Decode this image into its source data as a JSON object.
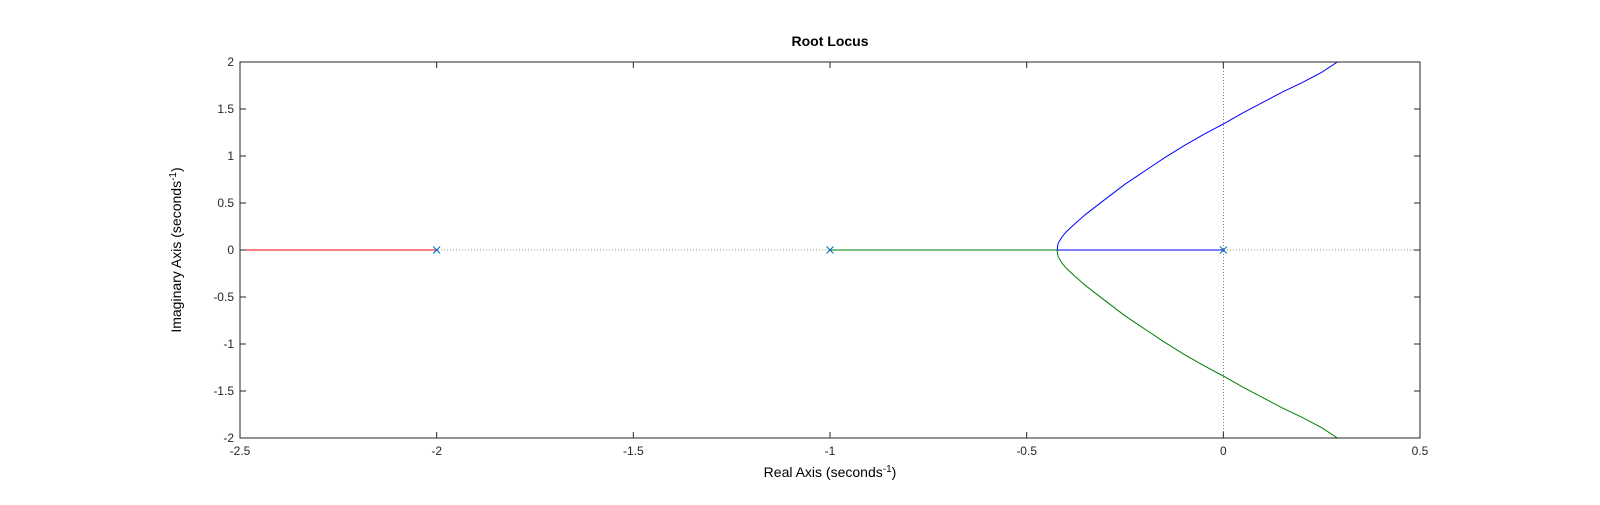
{
  "chart_data": {
    "type": "line",
    "title": "Root Locus",
    "xlabel": {
      "main": "Real Axis (seconds",
      "sup": "-1",
      "close": ")"
    },
    "ylabel": {
      "main": "Imaginary Axis (seconds",
      "sup": "-1",
      "close": ")"
    },
    "xlim": [
      -2.5,
      0.5
    ],
    "ylim": [
      -2,
      2
    ],
    "xticks": [
      -2.5,
      -2,
      -1.5,
      -1,
      -0.5,
      0,
      0.5
    ],
    "yticks": [
      -2,
      -1.5,
      -1,
      -0.5,
      0,
      0.5,
      1,
      1.5,
      2
    ],
    "grid": false,
    "reference_lines": [
      "y = 0 (dotted)",
      "x = 0 (dotted)"
    ],
    "series": [
      {
        "color": "#ff0000",
        "x": [
          -2.0,
          -2.1,
          -2.2,
          -2.3,
          -2.4,
          -2.5
        ],
        "y": [
          0,
          0,
          0,
          0,
          0,
          0
        ]
      },
      {
        "color": "#0000ff",
        "x": [
          0.0,
          -0.1,
          -0.2,
          -0.3,
          -0.4226,
          -0.42,
          -0.41,
          -0.4,
          -0.38,
          -0.35,
          -0.3,
          -0.25,
          -0.2,
          -0.15,
          -0.1,
          -0.05,
          0.0,
          0.05,
          0.1,
          0.15,
          0.2,
          0.25,
          0.29
        ],
        "y": [
          0,
          0,
          0,
          0,
          0,
          0.07,
          0.14,
          0.19,
          0.27,
          0.38,
          0.54,
          0.7,
          0.84,
          0.98,
          1.11,
          1.23,
          1.34,
          1.46,
          1.57,
          1.68,
          1.78,
          1.89,
          2.0
        ]
      },
      {
        "color": "#008000",
        "x": [
          -1.0,
          -0.9,
          -0.8,
          -0.7,
          -0.6,
          -0.5,
          -0.4226,
          -0.42,
          -0.41,
          -0.4,
          -0.38,
          -0.35,
          -0.3,
          -0.25,
          -0.2,
          -0.15,
          -0.1,
          -0.05,
          0.0,
          0.05,
          0.1,
          0.15,
          0.2,
          0.25,
          0.29
        ],
        "y": [
          0,
          0,
          0,
          0,
          0,
          0,
          0,
          -0.07,
          -0.14,
          -0.19,
          -0.27,
          -0.38,
          -0.54,
          -0.7,
          -0.84,
          -0.98,
          -1.11,
          -1.23,
          -1.34,
          -1.46,
          -1.57,
          -1.68,
          -1.78,
          -1.89,
          -2.0
        ]
      }
    ],
    "poles": {
      "color": "#0072bd",
      "marker": "x",
      "x": [
        -2,
        -1,
        0
      ],
      "y": [
        0,
        0,
        0
      ]
    }
  }
}
